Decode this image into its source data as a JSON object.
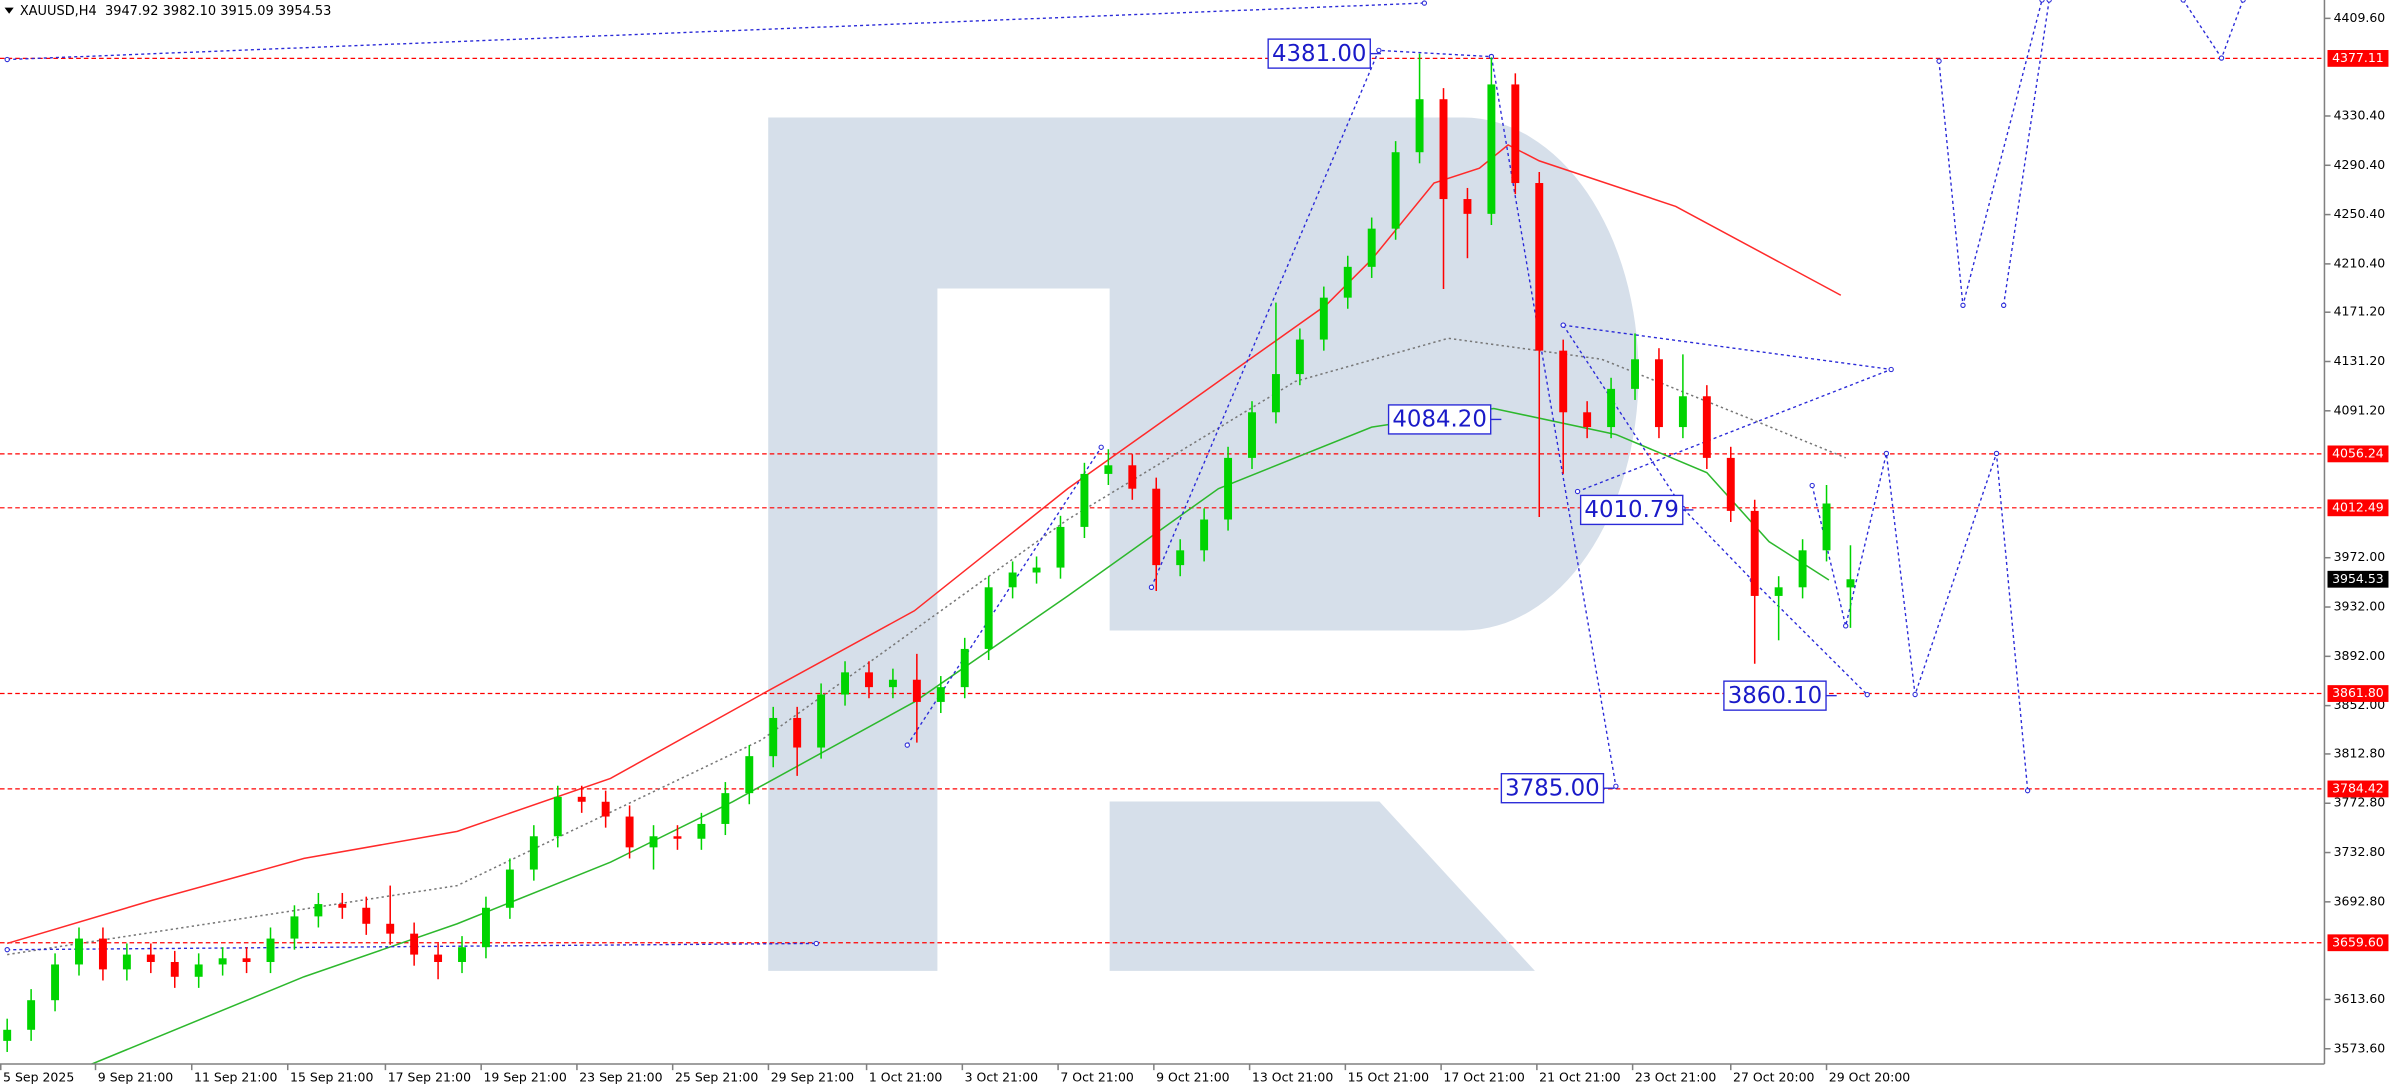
{
  "chart_data": {
    "type": "candlestick",
    "header": "XAUUSD,H4  3947.92 3982.10 3915.09 3954.53",
    "xlim": [
      -0.3,
      96.8
    ],
    "ylim": [
      3561.2,
      4424.5
    ],
    "xticks": [
      {
        "value": -0.3,
        "label": "5 Sep 2025"
      },
      {
        "value": 3.69,
        "label": "9 Sep 21:00"
      },
      {
        "value": 7.71,
        "label": "11 Sep 21:00"
      },
      {
        "value": 11.72,
        "label": "15 Sep 21:00"
      },
      {
        "value": 15.8,
        "label": "17 Sep 21:00"
      },
      {
        "value": 19.8,
        "label": "19 Sep 21:00"
      },
      {
        "value": 23.8,
        "label": "23 Sep 21:00"
      },
      {
        "value": 27.8,
        "label": "25 Sep 21:00"
      },
      {
        "value": 31.8,
        "label": "29 Sep 21:00"
      },
      {
        "value": 35.9,
        "label": "1 Oct 21:00"
      },
      {
        "value": 39.9,
        "label": "3 Oct 21:00"
      },
      {
        "value": 43.9,
        "label": "7 Oct 21:00"
      },
      {
        "value": 47.9,
        "label": "9 Oct 21:00"
      },
      {
        "value": 51.9,
        "label": "13 Oct 21:00"
      },
      {
        "value": 55.9,
        "label": "15 Oct 21:00"
      },
      {
        "value": 59.9,
        "label": "17 Oct 21:00"
      },
      {
        "value": 63.9,
        "label": "21 Oct 21:00"
      },
      {
        "value": 67.9,
        "label": "23 Oct 21:00"
      },
      {
        "value": 72.0,
        "label": "27 Oct 20:00"
      },
      {
        "value": 76.0,
        "label": "29 Oct 20:00"
      }
    ],
    "yticks": [
      {
        "value": 4409.6,
        "label": "4409.60"
      },
      {
        "value": 4330.4,
        "label": "4330.40"
      },
      {
        "value": 4290.4,
        "label": "4290.40"
      },
      {
        "value": 4250.4,
        "label": "4250.40"
      },
      {
        "value": 4210.4,
        "label": "4210.40"
      },
      {
        "value": 4171.2,
        "label": "4171.20"
      },
      {
        "value": 4131.2,
        "label": "4131.20"
      },
      {
        "value": 4091.2,
        "label": "4091.20"
      },
      {
        "value": 3972,
        "label": "3972.00"
      },
      {
        "value": 3932,
        "label": "3932.00"
      },
      {
        "value": 3892,
        "label": "3892.00"
      },
      {
        "value": 3852,
        "label": "3852.00"
      },
      {
        "value": 3812.8,
        "label": "3812.80"
      },
      {
        "value": 3772.8,
        "label": "3772.80"
      },
      {
        "value": 3732.8,
        "label": "3732.80"
      },
      {
        "value": 3692.8,
        "label": "3692.80"
      },
      {
        "value": 3613.6,
        "label": "3613.60"
      },
      {
        "value": 3573.6,
        "label": "3573.60"
      }
    ],
    "up_color": "#00d400",
    "down_color": "#ff0000",
    "open": [
      3580,
      3589,
      3613,
      3642,
      3663,
      3638,
      3650,
      3644,
      3632,
      3642,
      3647,
      3644,
      3663,
      3681,
      3691,
      3688,
      3675,
      3667,
      3650,
      3644,
      3656,
      3688,
      3719,
      3746,
      3778,
      3774,
      3762,
      3737,
      3746,
      3744,
      3756,
      3781,
      3811,
      3842,
      3818,
      3861,
      3879,
      3867,
      3873,
      3855,
      3867,
      3898,
      3948,
      3960,
      3964,
      3997,
      4040,
      4047,
      4028,
      3966,
      3978,
      4003,
      4053,
      4090,
      4121,
      4149,
      4183,
      4208,
      4239,
      4301,
      4344,
      4263,
      4251,
      4356,
      4276,
      4140,
      4090,
      4078,
      4109,
      4133,
      4078,
      4103,
      4053,
      4010,
      3941,
      3948,
      3978,
      3947.92
    ],
    "high": [
      3598,
      3622,
      3651,
      3672,
      3672,
      3659,
      3659,
      3653,
      3651,
      3656,
      3656,
      3672,
      3690,
      3700,
      3700,
      3697,
      3706,
      3676,
      3659,
      3665,
      3697,
      3728,
      3755,
      3787,
      3787,
      3783,
      3771,
      3755,
      3755,
      3765,
      3790,
      3820,
      3851,
      3851,
      3870,
      3888,
      3888,
      3882,
      3894,
      3876,
      3907,
      3957,
      3969,
      3973,
      4006,
      4049,
      4060,
      4056,
      4037,
      3987,
      4012,
      4062,
      4099,
      4179,
      4158,
      4192,
      4217,
      4248,
      4310,
      4381,
      4353,
      4272,
      4378,
      4365,
      4285,
      4149,
      4099,
      4118,
      4154,
      4142,
      4137,
      4112,
      4062,
      4019,
      3957,
      3987,
      4031,
      3982.1
    ],
    "low": [
      3571,
      3580,
      3604,
      3633,
      3629,
      3629,
      3635,
      3623,
      3623,
      3633,
      3635,
      3635,
      3654,
      3672,
      3679,
      3666,
      3658,
      3641,
      3630,
      3635,
      3647,
      3679,
      3710,
      3737,
      3765,
      3753,
      3728,
      3719,
      3735,
      3735,
      3747,
      3772,
      3802,
      3795,
      3809,
      3852,
      3858,
      3858,
      3822,
      3846,
      3858,
      3889,
      3939,
      3951,
      3955,
      3988,
      4031,
      4019,
      3945,
      3957,
      3969,
      3994,
      4044,
      4081,
      4112,
      4140,
      4174,
      4199,
      4230,
      4292,
      4190,
      4215,
      4242,
      4267,
      4005,
      4040,
      4069,
      4069,
      4100,
      4069,
      4069,
      4044,
      4001,
      3886,
      3905,
      3939,
      3969,
      3915.09
    ],
    "close": [
      3589,
      3613,
      3642,
      3663,
      3638,
      3650,
      3644,
      3632,
      3642,
      3647,
      3644,
      3663,
      3681,
      3691,
      3688,
      3675,
      3667,
      3650,
      3644,
      3656,
      3688,
      3719,
      3746,
      3778,
      3774,
      3762,
      3737,
      3746,
      3744,
      3756,
      3781,
      3811,
      3842,
      3818,
      3861,
      3879,
      3867,
      3873,
      3855,
      3867,
      3898,
      3948,
      3960,
      3964,
      3997,
      4040,
      4047,
      4028,
      3966,
      3978,
      4003,
      4053,
      4090,
      4121,
      4149,
      4183,
      4208,
      4239,
      4301,
      4344,
      4263,
      4251,
      4356,
      4276,
      4140,
      4090,
      4078,
      4109,
      4133,
      4078,
      4103,
      4053,
      4010,
      3941,
      3948,
      3978,
      4016,
      3954.53
    ],
    "moving_averages": [
      {
        "color": "#ff2a2a",
        "dotted": false,
        "x": [
          0,
          6.05,
          12.4,
          18.8,
          25.2,
          31.5,
          37.9,
          44.3,
          50.6,
          55.1,
          57,
          59.6,
          61.5,
          62.7,
          64,
          69.7,
          76.6
        ],
        "values": [
          3659,
          3694,
          3728,
          3750,
          3793,
          3861,
          3929,
          4028,
          4115,
          4177,
          4214,
          4276,
          4288,
          4307,
          4294,
          4257,
          4185
        ]
      },
      {
        "color": "#2db82d",
        "dotted": false,
        "x": [
          3.5,
          12.4,
          18.8,
          25.2,
          30.3,
          37.9,
          44.3,
          50.6,
          57,
          62.1,
          67.2,
          71,
          73.6,
          76.1
        ],
        "values": [
          3561,
          3632,
          3675,
          3725,
          3774,
          3855,
          3941,
          4028,
          4078,
          4093,
          4072,
          4041,
          3985,
          3954
        ]
      },
      {
        "color": "#777777",
        "dotted": true,
        "x": [
          0,
          18.8,
          31.5,
          44.3,
          53.8,
          60.2,
          66.6,
          72.9,
          76.8
        ],
        "values": [
          3650,
          3706,
          3824,
          4003,
          4115,
          4150,
          4133,
          4084,
          4053
        ]
      }
    ],
    "forecast_color": "#2a2ad8",
    "forecast_lines": [
      {
        "x": [
          0,
          59.2
        ],
        "values": [
          4376.2,
          4422
        ]
      },
      {
        "x": [
          0,
          33.8
        ],
        "values": [
          3654,
          3659
        ]
      },
      {
        "x": [
          37.6,
          45.7
        ],
        "values": [
          3820,
          4061.6
        ]
      },
      {
        "x": [
          47.8,
          57.3,
          62
        ],
        "values": [
          3948,
          4383.6,
          4378.6
        ]
      },
      {
        "x": [
          62,
          67.2
        ],
        "values": [
          4378.6,
          3786.6
        ]
      },
      {
        "x": [
          65,
          78.7,
          65.6
        ],
        "values": [
          4160.7,
          4124.7,
          4025.7
        ]
      },
      {
        "x": [
          65,
          70,
          72.9,
          77.7
        ],
        "values": [
          4160.7,
          4012,
          3953.8,
          3860.9
        ]
      },
      {
        "x": [
          75.4,
          76.8,
          78.5,
          79.7,
          83.1,
          84.4
        ],
        "values": [
          4030.6,
          3916.7,
          4056.6,
          3861,
          4056.6,
          3783
        ]
      },
      {
        "x": [
          80.7,
          81.7,
          85.0
        ],
        "values": [
          4374.9,
          4176.8,
          4424.5
        ]
      },
      {
        "x": [
          83.4,
          85.3
        ],
        "values": [
          4176.8,
          4424.5
        ]
      },
      {
        "x": [
          90.9,
          92.5,
          93.4
        ],
        "values": [
          4424.5,
          4377.4,
          4424.5
        ]
      }
    ],
    "levels": [
      4377.11,
      4056.24,
      4012.49,
      {
        "value": 3861.8,
        "label": "3861.80"
      },
      3784.42,
      {
        "value": 3659.6,
        "label": "3659.60"
      }
    ],
    "level_color": "#ff0000",
    "annotations": [
      {
        "value": 4381,
        "label": "4381.00"
      },
      {
        "value": 4084.2,
        "label": "4084.20"
      },
      {
        "value": 4010.79,
        "label": "4010.79"
      },
      {
        "value": 3860.1,
        "label": "3860.10"
      },
      {
        "value": 3785,
        "label": "3785.00"
      }
    ]
  }
}
